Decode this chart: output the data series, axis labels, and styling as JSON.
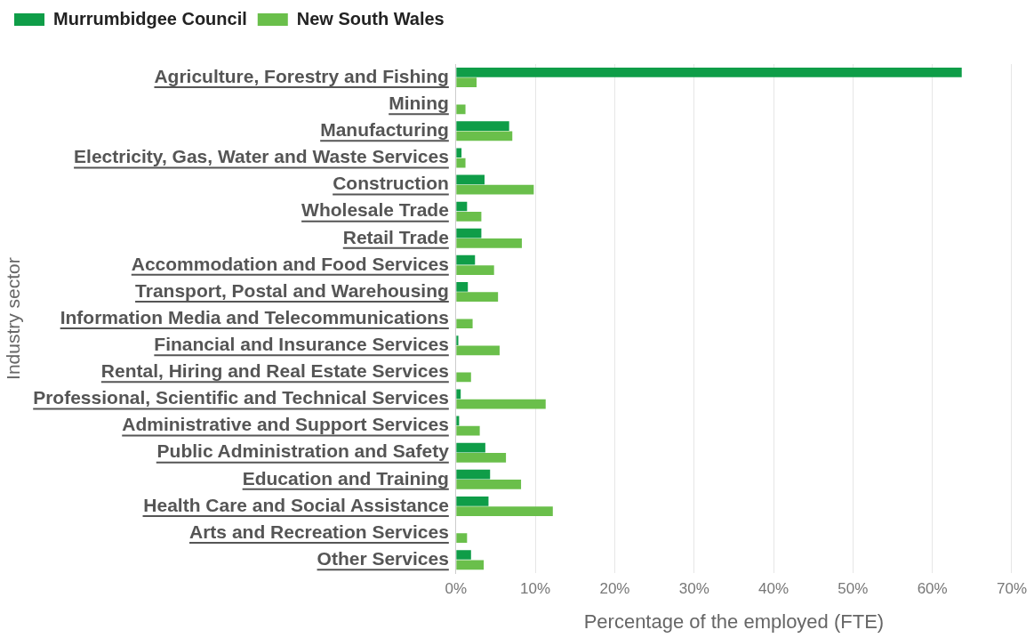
{
  "chart_data": {
    "type": "bar",
    "orientation": "horizontal",
    "xlabel": "Percentage of the employed (FTE)",
    "ylabel": "Industry sector",
    "categories": [
      "Agriculture, Forestry and Fishing",
      "Mining",
      "Manufacturing",
      "Electricity, Gas, Water and Waste Services",
      "Construction",
      "Wholesale Trade",
      "Retail Trade",
      "Accommodation and Food Services",
      "Transport, Postal and Warehousing",
      "Information Media and Telecommunications",
      "Financial and Insurance Services",
      "Rental, Hiring and Real Estate Services",
      "Professional, Scientific and Technical Services",
      "Administrative and Support Services",
      "Public Administration and Safety",
      "Education and Training",
      "Health Care and Social Assistance",
      "Arts and Recreation Services",
      "Other Services"
    ],
    "series": [
      {
        "name": "Murrumbidgee Council",
        "color": "#0f9d48",
        "values": [
          63.7,
          0,
          6.7,
          0.7,
          3.6,
          1.4,
          3.2,
          2.4,
          1.5,
          0,
          0.3,
          0,
          0.6,
          0.4,
          3.7,
          4.3,
          4.1,
          0,
          1.9
        ]
      },
      {
        "name": "New South Wales",
        "color": "#6abf4b",
        "values": [
          2.6,
          1.2,
          7.1,
          1.2,
          9.8,
          3.2,
          8.3,
          4.8,
          5.3,
          2.1,
          5.5,
          1.9,
          11.3,
          3.0,
          6.3,
          8.2,
          12.2,
          1.4,
          3.5
        ]
      }
    ],
    "xlim": [
      0,
      70
    ],
    "xticks": [
      {
        "value": 0,
        "label": "0%"
      },
      {
        "value": 10,
        "label": "10%"
      },
      {
        "value": 20,
        "label": "20%"
      },
      {
        "value": 30,
        "label": "30%"
      },
      {
        "value": 40,
        "label": "40%"
      },
      {
        "value": 50,
        "label": "50%"
      },
      {
        "value": 60,
        "label": "60%"
      },
      {
        "value": 70,
        "label": "70%"
      }
    ],
    "grid": "x",
    "legend": "top left"
  }
}
